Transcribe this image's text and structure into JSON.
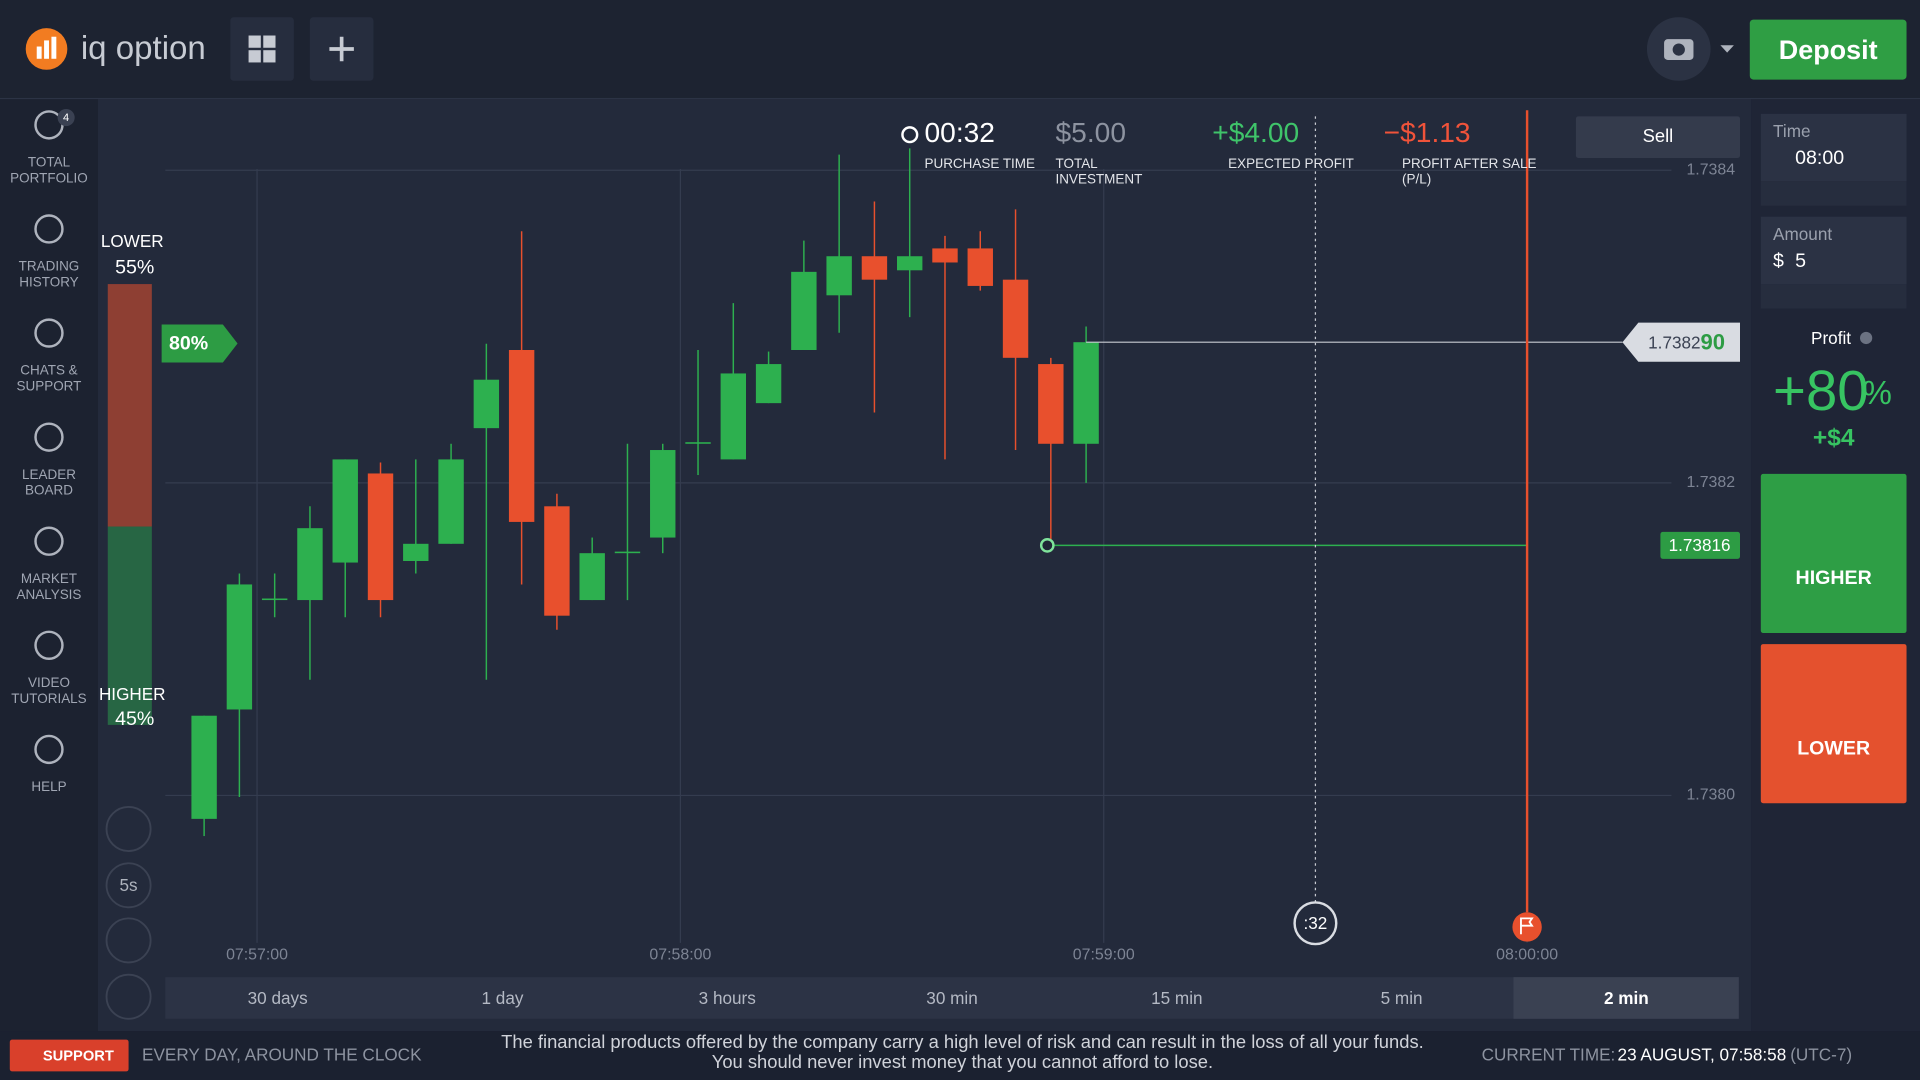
{
  "header": {
    "logo": "iq option",
    "deposit": "Deposit"
  },
  "sidebar": {
    "portfolio_badge": 4,
    "items": [
      "TOTAL PORTFOLIO",
      "TRADING HISTORY",
      "CHATS & SUPPORT",
      "LEADER BOARD",
      "MARKET ANALYSIS",
      "VIDEO TUTORIALS",
      "HELP"
    ]
  },
  "stats": [
    {
      "value": "00:32",
      "label": "PURCHASE TIME"
    },
    {
      "value": "$5.00",
      "label": "TOTAL INVESTMENT"
    },
    {
      "value": "+$4.00",
      "label": "EXPECTED PROFIT"
    },
    {
      "value": "−$1.13",
      "label": "PROFIT AFTER SALE (P/L)"
    }
  ],
  "sell": "Sell",
  "sentiment": {
    "lower_label": "LOWER",
    "lower_pct": {
      "value": 55,
      "label": "55%"
    },
    "higher_label": "HIGHER",
    "higher_pct": {
      "value": 45,
      "label": "45%"
    },
    "payout": "80%"
  },
  "chart_data": {
    "type": "candlestick",
    "x": [
      "07:56:50",
      "07:56:55",
      "07:57:00",
      "07:57:05",
      "07:57:10",
      "07:57:15",
      "07:57:20",
      "07:57:25",
      "07:57:30",
      "07:57:35",
      "07:57:40",
      "07:57:45",
      "07:57:50",
      "07:57:55",
      "07:58:00",
      "07:58:05",
      "07:58:10",
      "07:58:15",
      "07:58:20",
      "07:58:25",
      "07:58:30",
      "07:58:35",
      "07:58:40",
      "07:58:45",
      "07:58:50",
      "07:58:55"
    ],
    "open": [
      1.737985,
      1.738055,
      1.738125,
      1.738125,
      1.738149,
      1.738206,
      1.73815,
      1.738161,
      1.738235,
      1.738285,
      1.738185,
      1.738125,
      1.738155,
      1.738165,
      1.738225,
      1.738215,
      1.738251,
      1.738285,
      1.73832,
      1.738345,
      1.738336,
      1.73835,
      1.73835,
      1.73833,
      1.738276,
      1.738225
    ],
    "high": [
      1.738051,
      1.738142,
      1.738142,
      1.738185,
      1.738215,
      1.738213,
      1.738215,
      1.738225,
      1.738289,
      1.738361,
      1.738193,
      1.738165,
      1.738225,
      1.738225,
      1.738285,
      1.738315,
      1.738284,
      1.738355,
      1.73841,
      1.73838,
      1.738414,
      1.738358,
      1.738361,
      1.738375,
      1.73828,
      1.7383
    ],
    "low": [
      1.737974,
      1.737999,
      1.738114,
      1.738074,
      1.738114,
      1.738114,
      1.738142,
      1.738161,
      1.738074,
      1.738135,
      1.738106,
      1.738125,
      1.738125,
      1.738155,
      1.738205,
      1.738215,
      1.738251,
      1.738285,
      1.738296,
      1.738245,
      1.738306,
      1.738215,
      1.738323,
      1.738221,
      1.738161,
      1.7382
    ],
    "close": [
      1.738051,
      1.738135,
      1.738126,
      1.738171,
      1.738215,
      1.738125,
      1.738161,
      1.738215,
      1.738266,
      1.738175,
      1.738115,
      1.738155,
      1.738156,
      1.738221,
      1.738226,
      1.73827,
      1.738276,
      1.738335,
      1.738345,
      1.73833,
      1.738345,
      1.738341,
      1.738326,
      1.73828,
      1.738225,
      1.73829
    ],
    "up_color": "#2db04f",
    "down_color": "#e8502d",
    "xlim": [
      "07:56:47",
      "08:00:30"
    ],
    "xticks": [
      "07:57:00",
      "07:58:00",
      "07:59:00",
      "08:00:00"
    ],
    "ylim": [
      1.73789,
      1.73844
    ],
    "yticks": [
      1.7384,
      1.7382,
      {
        "value": 1.738,
        "label": "1.7380"
      }
    ],
    "grid": true,
    "current_price": {
      "value": 1.73829,
      "label": "1.738290"
    },
    "entry": {
      "time": "07:58:52",
      "price": 1.73816
    },
    "purchase_deadline": "07:59:30",
    "expiration": "08:00:00"
  },
  "chart_tools": {
    "interval": "5s"
  },
  "countdown": ":32",
  "periods": [
    "30 days",
    "1 day",
    "3 hours",
    "30 min",
    "15 min",
    "5 min",
    "2 min"
  ],
  "active_period": "2 min",
  "trade_panel": {
    "time_label": "Time",
    "time": "08:00",
    "amount_label": "Amount",
    "amount_currency": "$",
    "amount": 5,
    "profit_label": "Profit",
    "profit_percent": {
      "value": 80,
      "label": "+80"
    },
    "profit_percent_unit": "%",
    "profit_amount": "+$4",
    "higher": "HIGHER",
    "lower": "LOWER"
  },
  "footer": {
    "support": "SUPPORT",
    "tagline": "EVERY DAY, AROUND THE CLOCK",
    "disclaimer": [
      "The financial products offered by the company carry a high level of risk and can result in the loss of all your funds.",
      "You should never invest money that you cannot afford to lose."
    ],
    "current_time_label": "CURRENT TIME:",
    "current_time": "23 AUGUST, 07:58:58",
    "timezone": "(UTC-7)"
  }
}
